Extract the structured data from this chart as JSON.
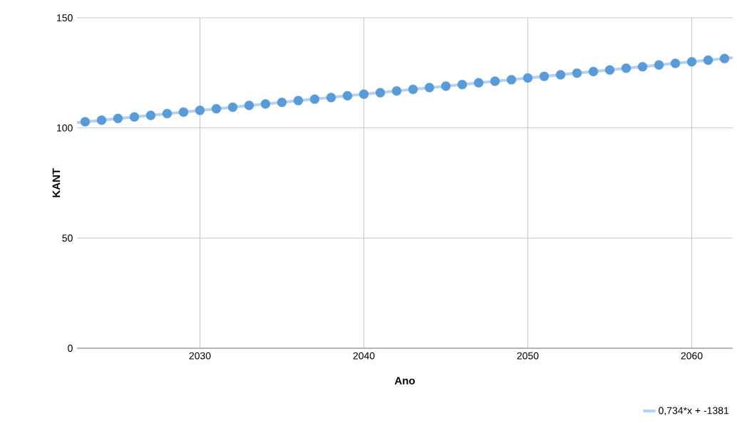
{
  "chart_data": {
    "type": "scatter",
    "xlabel": "Ano",
    "ylabel": "KANT",
    "xlim": [
      2022.5,
      2062.5
    ],
    "xticks": [
      2030,
      2040,
      2050,
      2060
    ],
    "ylim": [
      0,
      150
    ],
    "yticks": [
      0,
      50,
      100,
      150
    ],
    "grid": true,
    "legend": "bottom right",
    "marker": "circle",
    "series": [
      {
        "type": "scatter",
        "color": "#5b9bd5",
        "x": [
          2023,
          2024,
          2025,
          2026,
          2027,
          2028,
          2029,
          2030,
          2031,
          2032,
          2033,
          2034,
          2035,
          2036,
          2037,
          2038,
          2039,
          2040,
          2041,
          2042,
          2043,
          2044,
          2045,
          2046,
          2047,
          2048,
          2049,
          2050,
          2051,
          2052,
          2053,
          2054,
          2055,
          2056,
          2057,
          2058,
          2059,
          2060,
          2061,
          2062
        ],
        "values": [
          102.8,
          103.5,
          104.3,
          105.0,
          105.7,
          106.5,
          107.2,
          108.0,
          108.7,
          109.4,
          110.2,
          110.9,
          111.6,
          112.4,
          113.1,
          113.8,
          114.6,
          115.3,
          116.0,
          116.8,
          117.5,
          118.3,
          119.0,
          119.7,
          120.5,
          121.2,
          121.9,
          122.7,
          123.4,
          124.1,
          124.9,
          125.6,
          126.3,
          127.1,
          127.8,
          128.6,
          129.3,
          130.0,
          130.8,
          131.5
        ]
      },
      {
        "type": "line",
        "marker": "none",
        "name": "0,734*x + -1381",
        "color": "#b3d1f0",
        "x": [
          2022.5,
          2062.5
        ],
        "values": [
          102.4,
          131.9
        ]
      }
    ]
  }
}
